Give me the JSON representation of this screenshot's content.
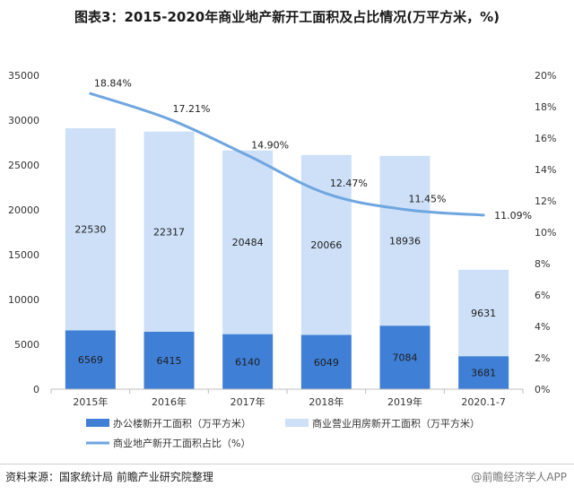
{
  "title": "图表3：2015-2020年商业地产新开工面积及占比情况(万平方米，%)",
  "source": "资料来源：国家统计局 前瞻产业研究院整理",
  "watermark": "@前瞻经济学人APP",
  "chart_data": {
    "type": "bar",
    "stacked": true,
    "categories": [
      "2015年",
      "2016年",
      "2017年",
      "2018年",
      "2019年",
      "2020.1-7"
    ],
    "series": [
      {
        "name": "办公楼新开工面积（万平方米）",
        "values": [
          6569,
          6415,
          6140,
          6049,
          7084,
          3681
        ],
        "color": "#3f7fd6"
      },
      {
        "name": "商业营业用房新开工面积（万平方米）",
        "values": [
          22530,
          22317,
          20484,
          20066,
          18936,
          9631
        ],
        "color": "#cde0f7"
      }
    ],
    "line_series": {
      "name": "商业地产新开工面积占比（%）",
      "values": [
        18.84,
        17.21,
        14.9,
        12.47,
        11.45,
        11.09
      ],
      "labels": [
        "18.84%",
        "17.21%",
        "14.90%",
        "12.47%",
        "11.45%",
        "11.09%"
      ],
      "color": "#6fa6e0",
      "axis": "right"
    },
    "ylim": [
      0,
      35000
    ],
    "y_ticks": [
      0,
      5000,
      10000,
      15000,
      20000,
      25000,
      30000,
      35000
    ],
    "y2lim": [
      0,
      20
    ],
    "y2_ticks": [
      "0%",
      "2%",
      "4%",
      "6%",
      "8%",
      "10%",
      "12%",
      "14%",
      "16%",
      "18%",
      "20%"
    ],
    "legend_position": "bottom",
    "grid": false
  }
}
